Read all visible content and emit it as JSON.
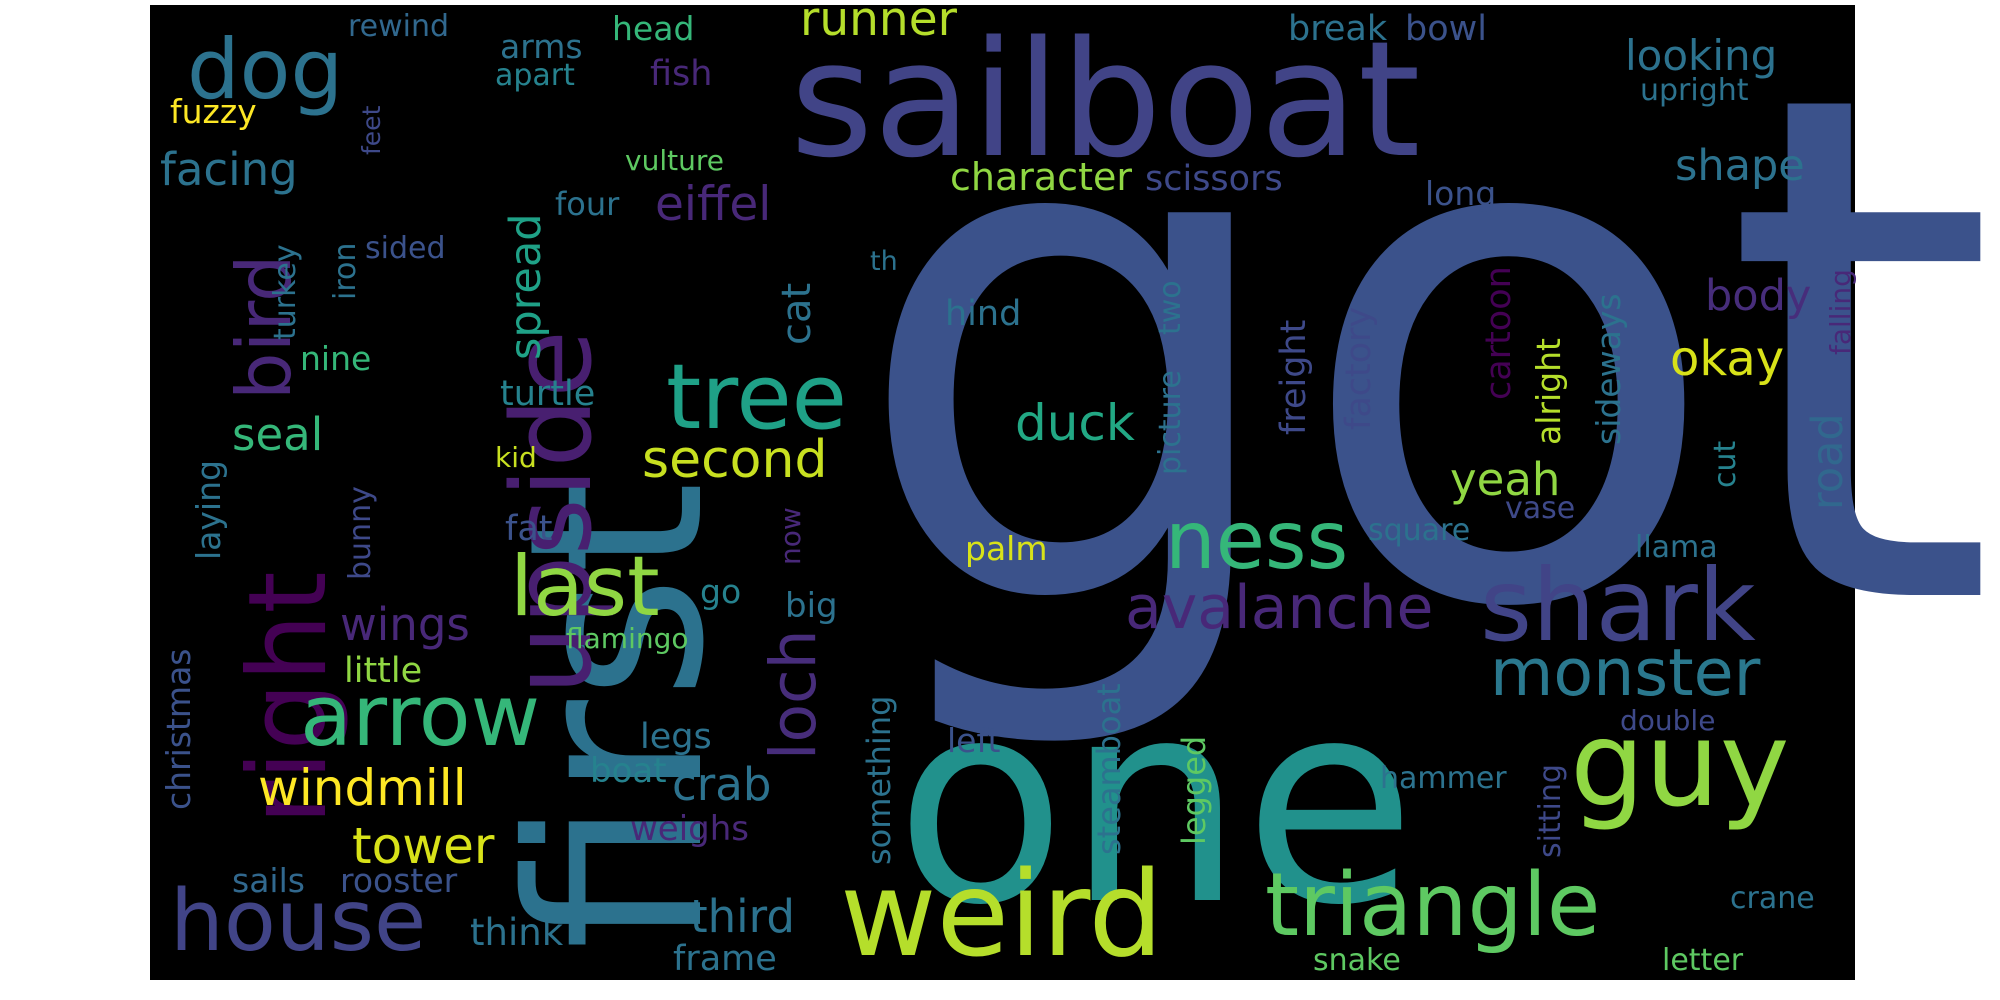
{
  "canvas": {
    "background": "#000000"
  },
  "words": [
    {
      "text": "got",
      "color": "#3b528b"
    },
    {
      "text": "first",
      "color": "#2c728e"
    },
    {
      "text": "one",
      "color": "#21918c"
    },
    {
      "text": "sailboat",
      "color": "#414487"
    },
    {
      "text": "upside",
      "color": "#481f70"
    },
    {
      "text": "right",
      "color": "#440154"
    },
    {
      "text": "dog",
      "color": "#2c728e"
    },
    {
      "text": "bird",
      "color": "#482878"
    },
    {
      "text": "tree",
      "color": "#1fa187"
    },
    {
      "text": "arrow",
      "color": "#35b779"
    },
    {
      "text": "last",
      "color": "#90d743"
    },
    {
      "text": "house",
      "color": "#414487"
    },
    {
      "text": "weird",
      "color": "#b5de2b"
    },
    {
      "text": "triangle",
      "color": "#5ec962"
    },
    {
      "text": "shark",
      "color": "#414487"
    },
    {
      "text": "guy",
      "color": "#90d743"
    },
    {
      "text": "ness",
      "color": "#35b779"
    },
    {
      "text": "monster",
      "color": "#2a788e"
    },
    {
      "text": "avalanche",
      "color": "#482878"
    },
    {
      "text": "loch",
      "color": "#472d7b"
    },
    {
      "text": "second",
      "color": "#c8e020"
    },
    {
      "text": "windmill",
      "color": "#fde725"
    },
    {
      "text": "tower",
      "color": "#d8e219"
    },
    {
      "text": "crab",
      "color": "#2c728e"
    },
    {
      "text": "duck",
      "color": "#22a884"
    },
    {
      "text": "seal",
      "color": "#35b779"
    },
    {
      "text": "wings",
      "color": "#482878"
    },
    {
      "text": "spread",
      "color": "#1fa187"
    },
    {
      "text": "eiffel",
      "color": "#482878"
    },
    {
      "text": "facing",
      "color": "#2c728e"
    },
    {
      "text": "runner",
      "color": "#b5de2b"
    },
    {
      "text": "looking",
      "color": "#2c728e"
    },
    {
      "text": "shape",
      "color": "#2c728e"
    },
    {
      "text": "body",
      "color": "#472d7b"
    },
    {
      "text": "okay",
      "color": "#d8e219"
    },
    {
      "text": "yeah",
      "color": "#90d743"
    },
    {
      "text": "road",
      "color": "#31688e"
    },
    {
      "text": "character",
      "color": "#90d743"
    },
    {
      "text": "scissors",
      "color": "#3e4989"
    },
    {
      "text": "cat",
      "color": "#2c728e"
    },
    {
      "text": "third",
      "color": "#2c728e"
    },
    {
      "text": "frame",
      "color": "#2c728e"
    },
    {
      "text": "think",
      "color": "#2c728e"
    },
    {
      "text": "sails",
      "color": "#31688e"
    },
    {
      "text": "rooster",
      "color": "#3b528b"
    },
    {
      "text": "weighs",
      "color": "#482878"
    },
    {
      "text": "boat",
      "color": "#26828e"
    },
    {
      "text": "legs",
      "color": "#2c728e"
    },
    {
      "text": "little",
      "color": "#90d743"
    },
    {
      "text": "flamingo",
      "color": "#5ec962"
    },
    {
      "text": "go",
      "color": "#26828e"
    },
    {
      "text": "big",
      "color": "#2c728e"
    },
    {
      "text": "fat",
      "color": "#3b528b"
    },
    {
      "text": "kid",
      "color": "#c8e020"
    },
    {
      "text": "turtle",
      "color": "#26828e"
    },
    {
      "text": "nine",
      "color": "#35b779"
    },
    {
      "text": "christmas",
      "color": "#3b528b"
    },
    {
      "text": "laying",
      "color": "#2c728e"
    },
    {
      "text": "bunny",
      "color": "#3e4989"
    },
    {
      "text": "turkey",
      "color": "#2c728e"
    },
    {
      "text": "iron",
      "color": "#2c728e"
    },
    {
      "text": "sided",
      "color": "#3b528b"
    },
    {
      "text": "four",
      "color": "#2c728e"
    },
    {
      "text": "th",
      "color": "#2c728e"
    },
    {
      "text": "hind",
      "color": "#2c728e"
    },
    {
      "text": "picture",
      "color": "#2c728e"
    },
    {
      "text": "two",
      "color": "#2c728e"
    },
    {
      "text": "palm",
      "color": "#d8e219"
    },
    {
      "text": "now",
      "color": "#482878"
    },
    {
      "text": "something",
      "color": "#2c728e"
    },
    {
      "text": "left",
      "color": "#3b528b"
    },
    {
      "text": "steamboat",
      "color": "#2c728e"
    },
    {
      "text": "legged",
      "color": "#5ec962"
    },
    {
      "text": "freight",
      "color": "#3e4989"
    },
    {
      "text": "factory",
      "color": "#3e4989"
    },
    {
      "text": "cartoon",
      "color": "#440154"
    },
    {
      "text": "alright",
      "color": "#b5de2b"
    },
    {
      "text": "sideways",
      "color": "#2c728e"
    },
    {
      "text": "square",
      "color": "#2c728e"
    },
    {
      "text": "vase",
      "color": "#3e4989"
    },
    {
      "text": "cut",
      "color": "#26828e"
    },
    {
      "text": "llama",
      "color": "#2c728e"
    },
    {
      "text": "double",
      "color": "#3e4989"
    },
    {
      "text": "sitting",
      "color": "#3e4989"
    },
    {
      "text": "hammer",
      "color": "#2c728e"
    },
    {
      "text": "crane",
      "color": "#2c728e"
    },
    {
      "text": "snake",
      "color": "#5ec962"
    },
    {
      "text": "letter",
      "color": "#5ec962"
    },
    {
      "text": "long",
      "color": "#3b528b"
    },
    {
      "text": "falling",
      "color": "#482878"
    },
    {
      "text": "upright",
      "color": "#2c728e"
    },
    {
      "text": "break",
      "color": "#2c728e"
    },
    {
      "text": "bowl",
      "color": "#3b528b"
    },
    {
      "text": "head",
      "color": "#35b779"
    },
    {
      "text": "fish",
      "color": "#482878"
    },
    {
      "text": "arms",
      "color": "#2c728e"
    },
    {
      "text": "apart",
      "color": "#26828e"
    },
    {
      "text": "rewind",
      "color": "#31688e"
    },
    {
      "text": "fuzzy",
      "color": "#fde725"
    },
    {
      "text": "feet",
      "color": "#3e4989"
    },
    {
      "text": "vulture",
      "color": "#5ec962"
    }
  ]
}
